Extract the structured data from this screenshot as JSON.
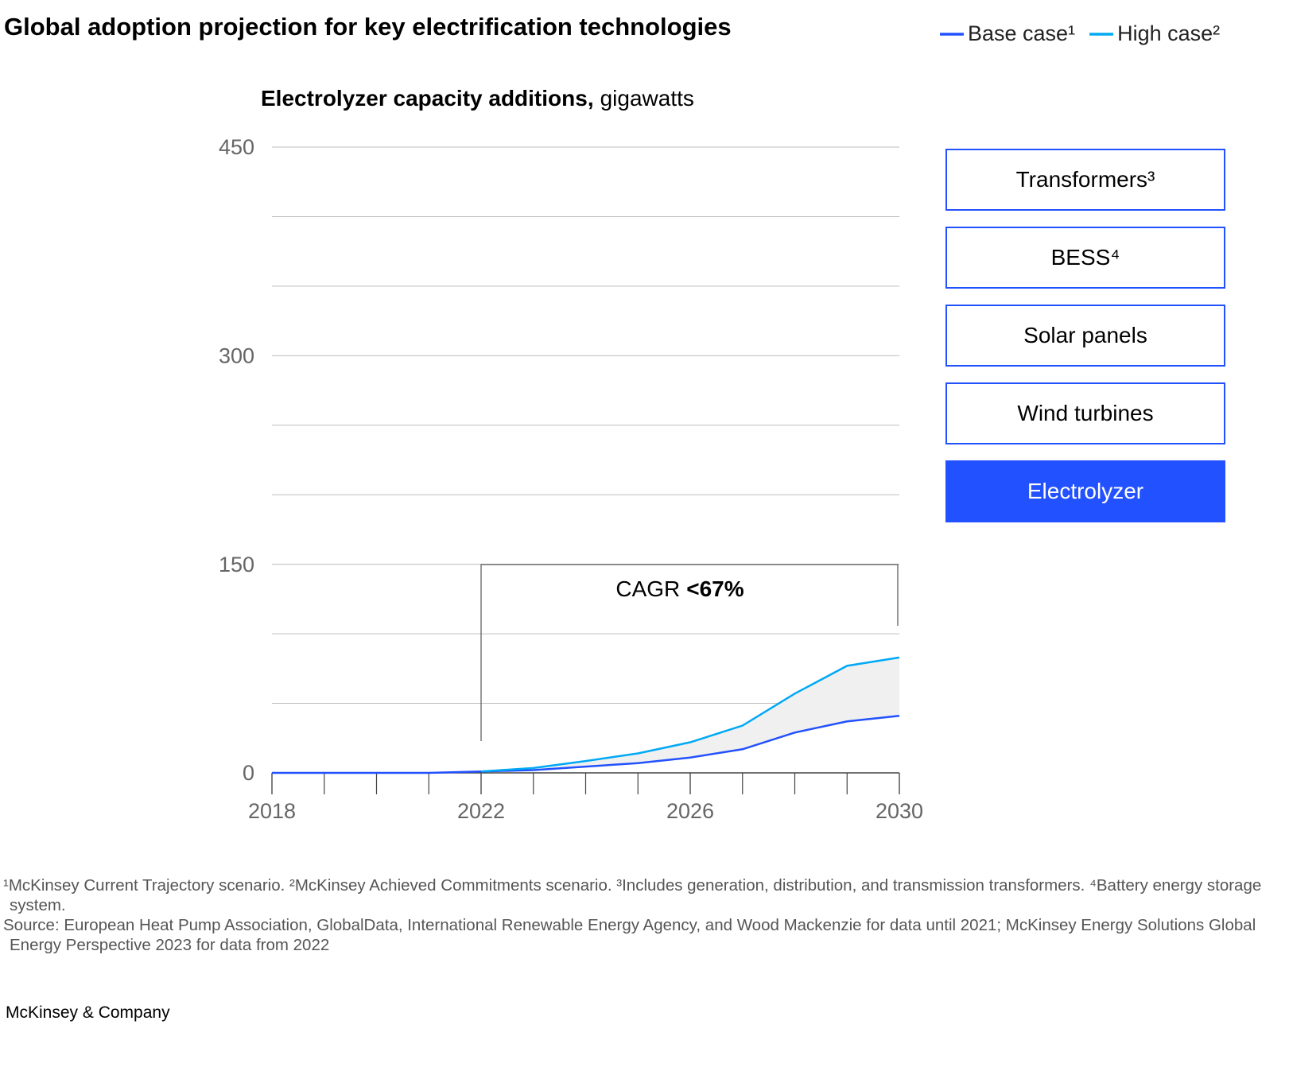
{
  "chart_data": {
    "type": "line",
    "title": "Global adoption projection for key electrification technologies",
    "subtitle": "Electrolyzer capacity additions,",
    "subtitle_unit": "gigawatts",
    "x": [
      2018,
      2019,
      2020,
      2021,
      2022,
      2023,
      2024,
      2025,
      2026,
      2027,
      2028,
      2029,
      2030
    ],
    "xlim": [
      2018,
      2030
    ],
    "xticks": [
      2018,
      2022,
      2026,
      2030
    ],
    "ylim": [
      0,
      450
    ],
    "yticks": [
      0,
      150,
      300,
      450
    ],
    "minor_yticks": [
      50,
      100,
      200,
      250,
      350,
      400
    ],
    "grid": true,
    "legend_position": "top-right",
    "series": [
      {
        "name": "Base case¹",
        "color": "#2251ff",
        "values": [
          0,
          0,
          0,
          0,
          1,
          2,
          4.5,
          7,
          11,
          17,
          29,
          37,
          41
        ]
      },
      {
        "name": "High case²",
        "color": "#00a9f4",
        "values": [
          null,
          null,
          null,
          null,
          1,
          3.5,
          8.5,
          14,
          22,
          34,
          57,
          77,
          83
        ]
      }
    ],
    "annotation": {
      "label": "CAGR",
      "value": "<67%"
    }
  },
  "tabs": [
    {
      "label": "Transformers³",
      "active": false
    },
    {
      "label": "BESS⁴",
      "active": false
    },
    {
      "label": "Solar panels",
      "active": false
    },
    {
      "label": "Wind turbines",
      "active": false
    },
    {
      "label": "Electrolyzer",
      "active": true
    }
  ],
  "footnotes": "¹McKinsey Current Trajectory scenario. ²McKinsey Achieved Commitments scenario. ³Includes generation, distribution, and transmission transformers. ⁴Battery energy storage system.",
  "source": "Source: European Heat Pump Association, GlobalData, International Renewable Energy Agency, and Wood Mackenzie for data until 2021; McKinsey Energy Solutions Global Energy Perspective 2023 for data from 2022",
  "brand": "McKinsey & Company"
}
